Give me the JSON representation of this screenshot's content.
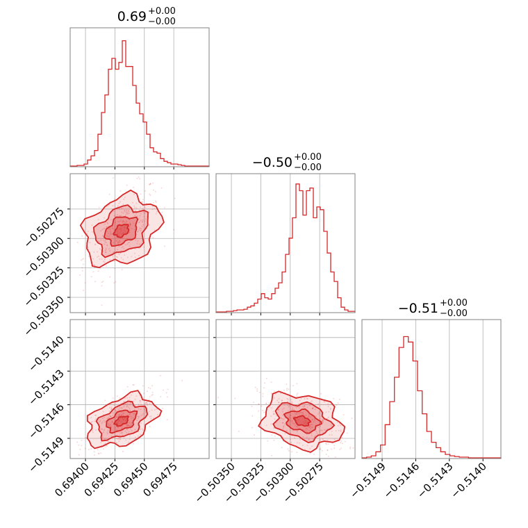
{
  "chart_data": {
    "type": "corner",
    "color": "#d62728",
    "parameters": [
      {
        "title_value": "0.69",
        "title_plus": "+0.00",
        "title_minus": "−0.00",
        "range": [
          0.69387,
          0.69505
        ],
        "ticks": [
          0.694,
          0.69425,
          0.6945,
          0.69475
        ],
        "tick_labels": [
          "0.69400",
          "0.69425",
          "0.69450",
          "0.69475"
        ]
      },
      {
        "title_value": "−0.50",
        "title_plus": "+0.00",
        "title_minus": "−0.00",
        "range": [
          -0.50363,
          -0.50245
        ],
        "ticks": [
          -0.5035,
          -0.50325,
          -0.503,
          -0.50275
        ],
        "tick_labels": [
          "−0.50350",
          "−0.50325",
          "−0.50300",
          "−0.50275"
        ]
      },
      {
        "title_value": "−0.51",
        "title_plus": "+0.00",
        "title_minus": "−0.00",
        "range": [
          -0.51508,
          -0.51384
        ],
        "ticks": [
          -0.5149,
          -0.5146,
          -0.5143,
          -0.514
        ],
        "tick_labels": [
          "−0.5149",
          "−0.5146",
          "−0.5143",
          "−0.5140"
        ]
      }
    ],
    "histograms": [
      [
        0.005,
        0.005,
        0.01,
        0.01,
        0.02,
        0.05,
        0.08,
        0.12,
        0.24,
        0.4,
        0.53,
        0.72,
        0.8,
        0.72,
        0.77,
        0.93,
        0.74,
        0.74,
        0.6,
        0.47,
        0.39,
        0.33,
        0.24,
        0.14,
        0.11,
        0.1,
        0.06,
        0.04,
        0.03,
        0.02,
        0.02,
        0.015,
        0.01,
        0.005,
        0.005,
        0.005,
        0.005,
        0.005,
        0.005,
        0.005
      ],
      [
        0.005,
        0.005,
        0.005,
        0.01,
        0.01,
        0.015,
        0.02,
        0.02,
        0.025,
        0.04,
        0.05,
        0.07,
        0.1,
        0.14,
        0.11,
        0.1,
        0.14,
        0.18,
        0.22,
        0.3,
        0.43,
        0.55,
        0.7,
        0.95,
        0.9,
        0.72,
        0.9,
        0.92,
        0.7,
        0.78,
        0.76,
        0.6,
        0.44,
        0.3,
        0.23,
        0.11,
        0.04,
        0.02,
        0.01,
        0.01
      ],
      [
        0.005,
        0.01,
        0.02,
        0.05,
        0.1,
        0.25,
        0.42,
        0.6,
        0.82,
        0.9,
        0.86,
        0.72,
        0.5,
        0.33,
        0.2,
        0.12,
        0.08,
        0.05,
        0.03,
        0.02,
        0.015,
        0.01,
        0.01,
        0.005,
        0.005,
        0.005,
        0.005,
        0.005,
        0.005,
        0.005
      ]
    ],
    "grid": true
  }
}
